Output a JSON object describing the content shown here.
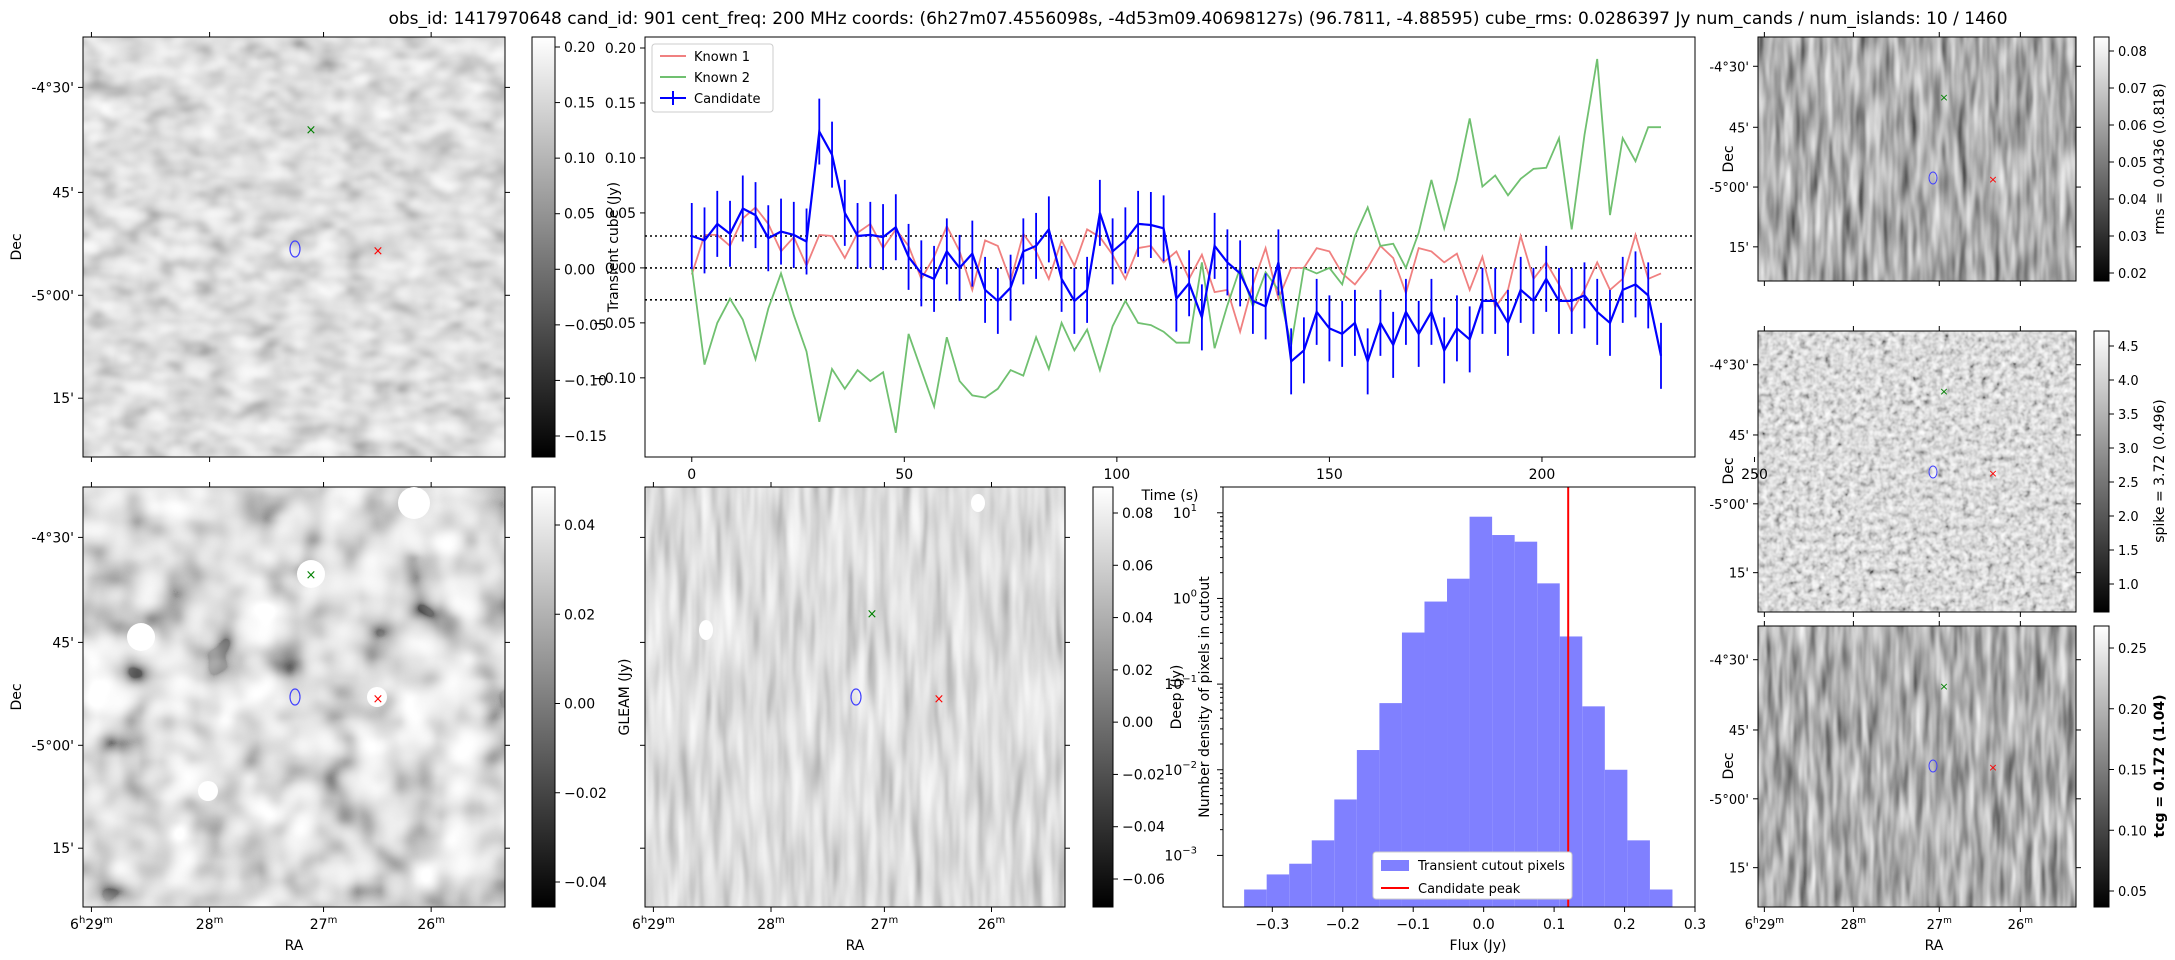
{
  "title": "obs_id: 1417970648 cand_id: 901 cent_freq: 200 MHz coords: (6h27m07.4556098s, -4d53m09.40698127s) (96.7811, -4.88595) cube_rms: 0.0286397 Jy num_cands / num_islands: 10 / 1460",
  "sky_axes": {
    "dec_ticks": [
      "-4°30'",
      "45'",
      "-5°00'",
      "15'"
    ],
    "ra_ticks": [
      "6h29m",
      "28m",
      "27m",
      "26m"
    ],
    "ra_label": "RA",
    "dec_label": "Dec"
  },
  "panels": {
    "transient_image": {
      "colorbar_ticks": [
        "0.20",
        "0.15",
        "0.10",
        "0.05",
        "0.00",
        "−0.05",
        "−0.10",
        "−0.15"
      ]
    },
    "gleam_image": {
      "colorbar_ticks": [
        "0.04",
        "0.02",
        "0.00",
        "−0.02",
        "−0.04"
      ],
      "colorbar_label": "GLEAM (Jy)"
    },
    "deep_image": {
      "colorbar_ticks": [
        "0.08",
        "0.06",
        "0.04",
        "0.02",
        "0.00",
        "−0.02",
        "−0.04",
        "−0.06"
      ],
      "colorbar_label": "Deep (Jy)"
    },
    "rms_image": {
      "colorbar_ticks": [
        "0.08",
        "0.07",
        "0.06",
        "0.05",
        "0.04",
        "0.03",
        "0.02"
      ],
      "colorbar_label": "rms = 0.0436 (0.818)"
    },
    "spike_image": {
      "colorbar_ticks": [
        "4.5",
        "4.0",
        "3.5",
        "3.0",
        "2.5",
        "2.0",
        "1.5",
        "1.0"
      ],
      "colorbar_label": "spike = 3.72 (0.496)"
    },
    "tcg_image": {
      "colorbar_ticks": [
        "0.25",
        "0.20",
        "0.15",
        "0.10",
        "0.05"
      ],
      "colorbar_label": "tcg = 0.172 (1.04)"
    }
  },
  "colors": {
    "candidate": "#0000ff",
    "known1": "#f08080",
    "known2": "#70c070",
    "hist": "#8080ff",
    "peak": "#ff0000",
    "green_marker": "#008000"
  },
  "chart_data": [
    {
      "type": "line",
      "xlabel": "Time (s)",
      "ylabel": "Transient cube (Jy)",
      "xticks": [
        0,
        50,
        100,
        150,
        200,
        250
      ],
      "yticks": [
        "0.20",
        "0.15",
        "0.10",
        "0.05",
        "0.00",
        "−0.05",
        "−0.10"
      ],
      "xlim": [
        -11,
        236
      ],
      "ylim": [
        -0.172,
        0.21
      ],
      "hlines": [
        0.029,
        0.0,
        -0.029
      ],
      "legend_position": "upper left",
      "x": [
        0,
        3,
        6,
        9,
        12,
        15,
        18,
        21,
        24,
        27,
        30,
        33,
        36,
        39,
        42,
        45,
        48,
        51,
        54,
        57,
        60,
        63,
        66,
        69,
        72,
        75,
        78,
        81,
        84,
        87,
        90,
        93,
        96,
        99,
        102,
        105,
        108,
        111,
        114,
        117,
        120,
        123,
        126,
        129,
        132,
        135,
        138,
        141,
        144,
        147,
        150,
        153,
        156,
        159,
        162,
        165,
        168,
        171,
        174,
        177,
        180,
        183,
        186,
        189,
        192,
        195,
        198,
        201,
        204,
        207,
        210,
        213,
        216,
        219,
        222,
        225,
        228
      ],
      "series": [
        {
          "name": "Known 1",
          "values": [
            -0.006,
            0.03,
            0.03,
            0.02,
            0.045,
            0.055,
            0.04,
            0.015,
            0.028,
            0.002,
            0.03,
            0.029,
            0.009,
            0.032,
            0.04,
            0.018,
            0.035,
            0.02,
            -0.01,
            0.01,
            0.038,
            0.015,
            -0.02,
            0.025,
            0.02,
            -0.012,
            0.031,
            0.015,
            -0.01,
            0.025,
            0.002,
            0.035,
            0.028,
            0.012,
            -0.01,
            0.018,
            0.02,
            0.005,
            0.015,
            -0.01,
            0.012,
            -0.022,
            -0.02,
            -0.058,
            -0.015,
            0.018,
            -0.028,
            0.0,
            0.0,
            0.018,
            0.015,
            -0.005,
            -0.015,
            0.0,
            0.02,
            0.009,
            -0.023,
            0.018,
            0.015,
            0.005,
            0.013,
            -0.02,
            0.01,
            -0.0358,
            -0.02,
            0.029,
            -0.01,
            0.005,
            -0.015,
            -0.04,
            -0.02,
            0.005,
            -0.02,
            -0.01,
            0.03,
            -0.01,
            -0.005
          ]
        },
        {
          "name": "Known 2",
          "values": [
            0.0,
            -0.088,
            -0.05,
            -0.028,
            -0.047,
            -0.083,
            -0.037,
            -0.005,
            -0.043,
            -0.076,
            -0.14,
            -0.092,
            -0.11,
            -0.093,
            -0.103,
            -0.095,
            -0.15,
            -0.06,
            -0.093,
            -0.126,
            -0.063,
            -0.103,
            -0.116,
            -0.118,
            -0.11,
            -0.093,
            -0.098,
            -0.063,
            -0.092,
            -0.05,
            -0.075,
            -0.056,
            -0.093,
            -0.053,
            -0.03,
            -0.05,
            -0.052,
            -0.058,
            -0.068,
            -0.068,
            0.005,
            -0.073,
            -0.034,
            0.0,
            -0.035,
            -0.004,
            -0.02,
            -0.07,
            0.0,
            -0.005,
            0.0,
            -0.015,
            0.029,
            0.055,
            0.02,
            0.022,
            0.0,
            0.032,
            0.08,
            0.036,
            0.08,
            0.136,
            0.074,
            0.084,
            0.066,
            0.081,
            0.09,
            0.091,
            0.118,
            0.035,
            0.121,
            0.19,
            0.048,
            0.118,
            0.097,
            0.128,
            0.128
          ]
        },
        {
          "name": "Candidate",
          "values": [
            0.029,
            0.025,
            0.04,
            0.031,
            0.054,
            0.048,
            0.027,
            0.033,
            0.03,
            0.024,
            0.124,
            0.103,
            0.05,
            0.029,
            0.03,
            0.028,
            0.037,
            0.01,
            -0.005,
            -0.01,
            0.015,
            0.0,
            0.013,
            -0.02,
            -0.03,
            -0.018,
            0.015,
            0.02,
            0.035,
            -0.01,
            -0.03,
            -0.02,
            0.05,
            0.015,
            0.025,
            0.04,
            0.039,
            0.036,
            -0.028,
            -0.014,
            -0.045,
            0.02,
            0.005,
            -0.005,
            -0.03,
            -0.035,
            0.005,
            -0.085,
            -0.075,
            -0.04,
            -0.055,
            -0.06,
            -0.05,
            -0.085,
            -0.05,
            -0.07,
            -0.04,
            -0.06,
            -0.04,
            -0.075,
            -0.055,
            -0.065,
            -0.03,
            -0.03,
            -0.05,
            -0.02,
            -0.03,
            -0.01,
            -0.03,
            -0.03,
            -0.025,
            -0.04,
            -0.05,
            -0.02,
            -0.015,
            -0.025,
            -0.08
          ],
          "errors": 0.03
        }
      ]
    },
    {
      "type": "bar",
      "xlabel": "Flux (Jy)",
      "ylabel": "Number density of pixels in cutout",
      "yscale": "log",
      "xticks": [
        "−0.3",
        "−0.2",
        "−0.1",
        "0.0",
        "0.1",
        "0.2",
        "0.3"
      ],
      "yticks": [
        "10^1",
        "10^0",
        "10^-1",
        "10^-2",
        "10^-3"
      ],
      "xlim": [
        -0.37,
        0.3
      ],
      "ylim": [
        0.00025,
        20
      ],
      "legend_position": "lower center",
      "bin_edges": [
        -0.34,
        -0.308,
        -0.276,
        -0.244,
        -0.212,
        -0.18,
        -0.148,
        -0.116,
        -0.084,
        -0.052,
        -0.02,
        0.012,
        0.044,
        0.076,
        0.108,
        0.14,
        0.172,
        0.204,
        0.236,
        0.268
      ],
      "series": [
        {
          "name": "Transient cutout pixels",
          "values": [
            0.0004,
            0.0006,
            0.0008,
            0.0015,
            0.0045,
            0.017,
            0.06,
            0.4,
            0.92,
            1.7,
            9,
            5.5,
            4.6,
            1.5,
            0.36,
            0.055,
            0.01,
            0.0015,
            0.0004
          ]
        },
        {
          "name": "Candidate peak",
          "values": [
            0.12
          ]
        }
      ]
    }
  ]
}
